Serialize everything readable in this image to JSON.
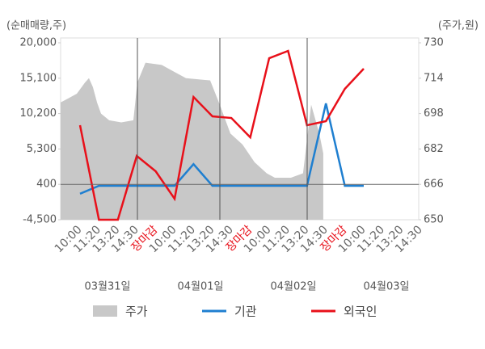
{
  "chart_data": {
    "type": "line",
    "y_axis_label": "(순매매량,주)",
    "y2_axis_label": "(주가,원)",
    "categories": [
      "10:00",
      "11:20",
      "13:20",
      "14:30",
      "장마감",
      "10:00",
      "11:20",
      "13:20",
      "14:30",
      "장마감",
      "10:00",
      "11:20",
      "13:20",
      "14:30",
      "장마감",
      "10:00",
      "11:20",
      "13:20",
      "14:30"
    ],
    "dates": [
      "03월31일",
      "04월01일",
      "04월02일",
      "04월03일"
    ],
    "ylim": [
      -4500,
      20000
    ],
    "yticks": [
      {
        "value": -4500,
        "label": "-4,500"
      },
      400,
      {
        "value": 5300,
        "label": "5,300"
      },
      {
        "value": 10200,
        "label": "10,200"
      },
      {
        "value": 15100,
        "label": "15,100"
      },
      {
        "value": 20000,
        "label": "20,000"
      }
    ],
    "y2lim": [
      650,
      730
    ],
    "y2ticks": [
      650,
      666,
      682,
      698,
      714,
      730
    ],
    "series": [
      {
        "name": "주가",
        "type": "area",
        "axis": "y2",
        "color": "#c8c8c8",
        "x": [
          -1.03,
          -0.6,
          -0.17,
          0.26,
          0.47,
          0.68,
          0.9,
          1.11,
          1.54,
          2.18,
          2.82,
          3.03,
          3.46,
          4.32,
          4.96,
          5.6,
          6.88,
          7.39,
          7.95,
          8.59,
          9.23,
          9.87,
          10.3,
          11.15,
          11.79,
          12.22,
          12.65,
          12.86
        ],
        "values": [
          703,
          705,
          707,
          712,
          714,
          710,
          703,
          698,
          695,
          694,
          695,
          712,
          721,
          720,
          717,
          714,
          713,
          702,
          689,
          684,
          676,
          671,
          669,
          669,
          671,
          702,
          689,
          680
        ]
      },
      {
        "name": "기관",
        "color": "#1f7fd0",
        "values": [
          -900,
          200,
          200,
          200,
          200,
          200,
          3200,
          200,
          200,
          200,
          200,
          200,
          200,
          11600,
          200,
          200,
          null,
          null,
          null
        ]
      },
      {
        "name": "외국인",
        "color": "#e8101a",
        "values": [
          8590,
          -4500,
          -4500,
          4340,
          2210,
          -1600,
          12500,
          9820,
          9590,
          6910,
          17870,
          18880,
          8590,
          9150,
          13620,
          16420,
          null,
          null,
          null
        ]
      }
    ]
  }
}
